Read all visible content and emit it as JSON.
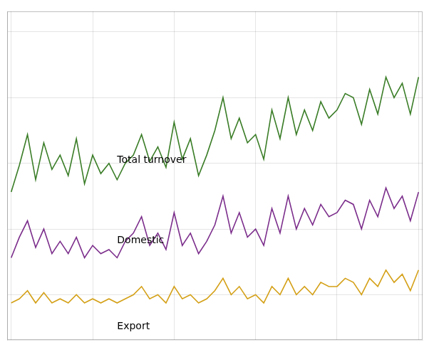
{
  "chart_data": {
    "type": "line",
    "x": [
      0,
      1,
      2,
      3,
      4,
      5,
      6,
      7,
      8,
      9,
      10,
      11,
      12,
      13,
      14,
      15,
      16,
      17,
      18,
      19,
      20,
      21,
      22,
      23,
      24,
      25,
      26,
      27,
      28,
      29,
      30,
      31,
      32,
      33,
      34,
      35,
      36,
      37,
      38,
      39,
      40,
      41,
      42,
      43,
      44,
      45,
      46,
      47,
      48,
      49,
      50
    ],
    "series": [
      {
        "color": "#3a7d27",
        "values": [
          82,
          95,
          110,
          88,
          106,
          93,
          100,
          90,
          108,
          86,
          100,
          91,
          96,
          88,
          96,
          100,
          110,
          97,
          104,
          94,
          116,
          98,
          108,
          90,
          100,
          112,
          128,
          108,
          118,
          106,
          110,
          98,
          122,
          108,
          128,
          110,
          122,
          112,
          126,
          118,
          122,
          130,
          128,
          115,
          132,
          120,
          138,
          128,
          135,
          120,
          138
        ]
      },
      {
        "color": "#7b2d8b",
        "values": [
          50,
          60,
          68,
          55,
          64,
          52,
          58,
          52,
          60,
          50,
          56,
          52,
          54,
          50,
          58,
          62,
          70,
          56,
          62,
          54,
          72,
          56,
          62,
          52,
          58,
          66,
          80,
          62,
          72,
          60,
          64,
          56,
          74,
          62,
          80,
          64,
          74,
          66,
          76,
          70,
          72,
          78,
          76,
          64,
          78,
          70,
          84,
          74,
          80,
          68,
          82
        ]
      },
      {
        "color": "#d4a017",
        "values": [
          28,
          30,
          34,
          28,
          33,
          28,
          30,
          28,
          32,
          28,
          30,
          28,
          30,
          28,
          30,
          32,
          36,
          30,
          32,
          28,
          36,
          30,
          32,
          28,
          30,
          34,
          40,
          32,
          36,
          30,
          32,
          28,
          36,
          32,
          40,
          32,
          36,
          32,
          38,
          36,
          36,
          40,
          38,
          32,
          40,
          36,
          44,
          38,
          42,
          34,
          44
        ]
      }
    ],
    "annotations": [
      {
        "text": "Total turnover",
        "x": 13,
        "y": 95
      },
      {
        "text": "Domestic",
        "x": 13,
        "y": 56
      },
      {
        "text": "Export",
        "x": 13,
        "y": 19
      }
    ],
    "xlim": [
      -0.5,
      50.5
    ],
    "xticks": [
      0,
      10,
      20,
      30,
      40,
      50
    ],
    "ylim": [
      10,
      170
    ],
    "yticks": [
      32,
      64,
      96,
      128,
      160
    ],
    "grid": true,
    "tick_labels": false
  }
}
